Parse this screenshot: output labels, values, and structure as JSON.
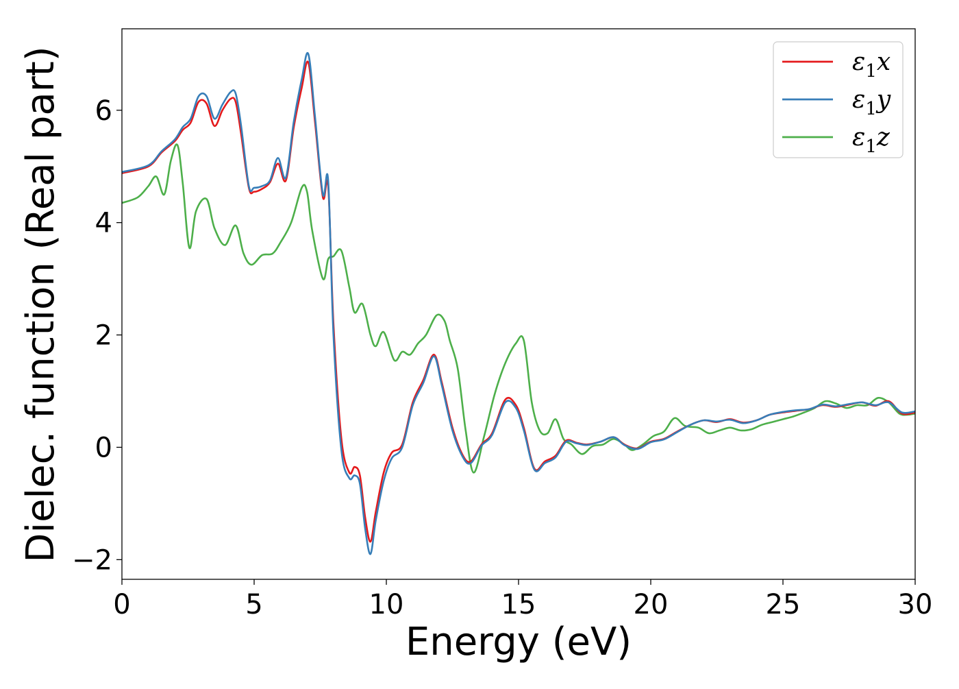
{
  "chart_data": {
    "type": "line",
    "title": "",
    "xlabel": "Energy (eV)",
    "ylabel": "Dielec. function (Real part)",
    "xlim": [
      0,
      30
    ],
    "ylim": [
      -2.35,
      7.45
    ],
    "xticks": [
      0,
      5,
      10,
      15,
      20,
      25,
      30
    ],
    "xtick_labels": [
      "0",
      "5",
      "10",
      "15",
      "20",
      "25",
      "30"
    ],
    "yticks": [
      -2,
      0,
      2,
      4,
      6
    ],
    "ytick_labels": [
      "−2",
      "0",
      "2",
      "4",
      "6"
    ],
    "grid": false,
    "legend_position": "top-right",
    "series": [
      {
        "name": "ε₁x",
        "legend_base": "ε",
        "legend_sub": "1",
        "legend_var": "x",
        "color": "#e41a1c",
        "x": [
          0,
          1,
          1.5,
          2,
          2.3,
          2.6,
          2.9,
          3.2,
          3.5,
          3.8,
          4.1,
          4.3,
          4.5,
          4.8,
          5.0,
          5.3,
          5.6,
          5.9,
          6.2,
          6.5,
          6.8,
          7.05,
          7.3,
          7.6,
          7.8,
          8.0,
          8.3,
          8.6,
          8.8,
          9.0,
          9.2,
          9.4,
          9.6,
          9.9,
          10.2,
          10.6,
          11.0,
          11.4,
          11.8,
          12.1,
          12.5,
          12.9,
          13.2,
          13.6,
          14.0,
          14.5,
          14.9,
          15.2,
          15.6,
          16.0,
          16.4,
          16.8,
          17.2,
          17.6,
          18.1,
          18.6,
          19.0,
          19.5,
          20.0,
          20.5,
          21.0,
          21.5,
          22.0,
          22.5,
          23.0,
          23.5,
          24.0,
          24.5,
          25.0,
          25.5,
          26.0,
          26.5,
          27.0,
          27.5,
          28.0,
          28.5,
          29.0,
          29.5,
          30.0
        ],
        "y": [
          4.88,
          5.0,
          5.25,
          5.45,
          5.65,
          5.78,
          6.15,
          6.12,
          5.72,
          6.0,
          6.2,
          6.15,
          5.6,
          4.62,
          4.55,
          4.6,
          4.72,
          5.05,
          4.75,
          5.7,
          6.4,
          6.85,
          5.8,
          4.45,
          4.65,
          2.2,
          0.15,
          -0.45,
          -0.35,
          -0.5,
          -1.25,
          -1.68,
          -1.15,
          -0.45,
          -0.1,
          0.05,
          0.8,
          1.2,
          1.65,
          1.15,
          0.35,
          -0.15,
          -0.25,
          0.05,
          0.25,
          0.85,
          0.75,
          0.35,
          -0.38,
          -0.25,
          -0.15,
          0.12,
          0.08,
          0.05,
          0.1,
          0.18,
          0.05,
          -0.02,
          0.1,
          0.15,
          0.28,
          0.4,
          0.48,
          0.45,
          0.5,
          0.44,
          0.48,
          0.58,
          0.62,
          0.65,
          0.68,
          0.75,
          0.72,
          0.76,
          0.8,
          0.74,
          0.82,
          0.6,
          0.62
        ]
      },
      {
        "name": "ε₁y",
        "legend_base": "ε",
        "legend_sub": "1",
        "legend_var": "y",
        "color": "#377eb8",
        "x": [
          0,
          1,
          1.5,
          2,
          2.3,
          2.6,
          2.9,
          3.2,
          3.5,
          3.8,
          4.1,
          4.3,
          4.5,
          4.8,
          5.0,
          5.3,
          5.6,
          5.9,
          6.2,
          6.5,
          6.8,
          7.05,
          7.3,
          7.6,
          7.8,
          8.0,
          8.3,
          8.6,
          8.8,
          9.0,
          9.2,
          9.4,
          9.6,
          9.9,
          10.2,
          10.6,
          11.0,
          11.4,
          11.8,
          12.1,
          12.5,
          12.9,
          13.2,
          13.6,
          14.0,
          14.5,
          14.9,
          15.2,
          15.6,
          16.0,
          16.4,
          16.8,
          17.2,
          17.6,
          18.1,
          18.6,
          19.0,
          19.5,
          20.0,
          20.5,
          21.0,
          21.5,
          22.0,
          22.5,
          23.0,
          23.5,
          24.0,
          24.5,
          25.0,
          25.5,
          26.0,
          26.5,
          27.0,
          27.5,
          28.0,
          28.5,
          29.0,
          29.5,
          30.0
        ],
        "y": [
          4.9,
          5.02,
          5.27,
          5.48,
          5.7,
          5.85,
          6.25,
          6.25,
          5.85,
          6.1,
          6.32,
          6.3,
          5.75,
          4.65,
          4.62,
          4.65,
          4.75,
          5.15,
          4.8,
          5.8,
          6.55,
          7.0,
          5.9,
          4.5,
          4.75,
          2.0,
          -0.05,
          -0.55,
          -0.5,
          -0.65,
          -1.45,
          -1.9,
          -1.3,
          -0.6,
          -0.2,
          0.0,
          0.75,
          1.15,
          1.62,
          1.1,
          0.3,
          -0.18,
          -0.28,
          0.03,
          0.22,
          0.8,
          0.7,
          0.3,
          -0.4,
          -0.28,
          -0.18,
          0.1,
          0.07,
          0.04,
          0.1,
          0.18,
          0.04,
          -0.03,
          0.09,
          0.14,
          0.27,
          0.4,
          0.48,
          0.46,
          0.49,
          0.43,
          0.48,
          0.58,
          0.63,
          0.66,
          0.68,
          0.76,
          0.73,
          0.77,
          0.8,
          0.75,
          0.8,
          0.62,
          0.64
        ]
      },
      {
        "name": "ε₁z",
        "legend_base": "ε",
        "legend_sub": "1",
        "legend_var": "z",
        "color": "#4daf4a",
        "x": [
          0,
          0.6,
          1.0,
          1.3,
          1.6,
          1.85,
          2.1,
          2.3,
          2.55,
          2.8,
          3.2,
          3.5,
          3.9,
          4.3,
          4.6,
          4.9,
          5.3,
          5.7,
          6.0,
          6.4,
          6.8,
          7.0,
          7.2,
          7.6,
          7.8,
          8.0,
          8.3,
          8.6,
          8.8,
          9.1,
          9.4,
          9.6,
          9.9,
          10.3,
          10.6,
          10.9,
          11.2,
          11.5,
          11.9,
          12.2,
          12.4,
          12.7,
          13.0,
          13.3,
          13.7,
          14.1,
          14.5,
          14.9,
          15.2,
          15.5,
          15.8,
          16.1,
          16.4,
          16.7,
          17.0,
          17.4,
          17.8,
          18.2,
          18.6,
          19.0,
          19.3,
          19.7,
          20.1,
          20.5,
          20.9,
          21.3,
          21.8,
          22.2,
          22.6,
          23.0,
          23.4,
          23.8,
          24.2,
          24.6,
          25.0,
          25.4,
          25.8,
          26.2,
          26.6,
          27.0,
          27.4,
          27.8,
          28.2,
          28.6,
          29.0,
          29.4,
          29.7,
          30.0
        ],
        "y": [
          4.35,
          4.45,
          4.65,
          4.82,
          4.5,
          5.1,
          5.38,
          4.7,
          3.55,
          4.2,
          4.42,
          3.9,
          3.6,
          3.95,
          3.45,
          3.25,
          3.42,
          3.45,
          3.65,
          4.0,
          4.62,
          4.55,
          3.85,
          3.0,
          3.35,
          3.4,
          3.5,
          2.85,
          2.4,
          2.55,
          2.0,
          1.8,
          2.05,
          1.55,
          1.7,
          1.65,
          1.85,
          2.0,
          2.35,
          2.25,
          1.9,
          1.4,
          0.3,
          -0.45,
          0.2,
          0.95,
          1.5,
          1.85,
          1.9,
          0.8,
          0.3,
          0.25,
          0.5,
          0.15,
          0.05,
          -0.12,
          0.02,
          0.05,
          0.15,
          0.05,
          -0.05,
          0.05,
          0.2,
          0.28,
          0.52,
          0.38,
          0.35,
          0.25,
          0.3,
          0.35,
          0.3,
          0.32,
          0.4,
          0.45,
          0.5,
          0.55,
          0.62,
          0.7,
          0.82,
          0.78,
          0.7,
          0.75,
          0.75,
          0.88,
          0.8,
          0.6,
          0.58,
          0.6
        ]
      }
    ]
  }
}
